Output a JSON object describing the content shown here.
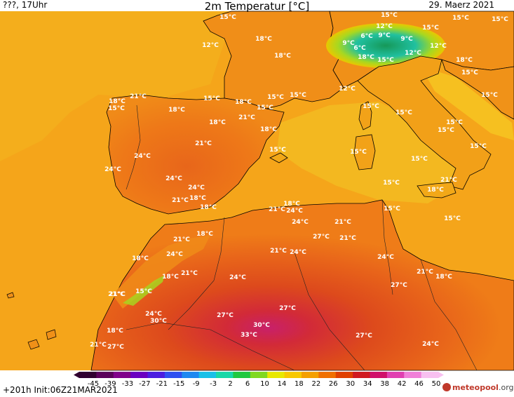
{
  "header": {
    "left": "???, 17Uhr",
    "title": "2m Temperatur [°C]",
    "date": "29. Maerz 2021"
  },
  "footer": {
    "run": "+201h Init:06Z21MAR2021",
    "logo_brand": "meteopool",
    "logo_domain": ".org"
  },
  "legend": {
    "ticks": [
      "-45",
      "-39",
      "-33",
      "-27",
      "-21",
      "-15",
      "-9",
      "-3",
      "2",
      "6",
      "10",
      "14",
      "18",
      "22",
      "26",
      "30",
      "34",
      "38",
      "42",
      "46",
      "50"
    ],
    "colors": [
      "#300030",
      "#5a005a",
      "#80008a",
      "#6a00c0",
      "#4b1ee0",
      "#2f50f0",
      "#1e88f0",
      "#18c0e8",
      "#18d8a8",
      "#20c840",
      "#80d820",
      "#e8e800",
      "#f8c800",
      "#f4a000",
      "#f07000",
      "#e04000",
      "#d01a20",
      "#d0106a",
      "#e040b0",
      "#f080d8",
      "#f8c0f0"
    ]
  },
  "colors": {
    "sea": "#f4a318",
    "sea_light": "#f6b020",
    "land_warm": "#f08418",
    "land_hot": "#e65a14",
    "land_hotter": "#d9411e",
    "land_hottest": "#c81e3c",
    "alps": "#20c8a0",
    "alps_high": "#18a060",
    "coast": "#000000"
  },
  "labels": [
    {
      "t": "15°C"
    },
    {
      "t": "12°C"
    },
    {
      "t": "18°C"
    },
    {
      "t": "18°C"
    },
    {
      "t": "15°C"
    },
    {
      "t": "12°C"
    },
    {
      "t": "6°C"
    },
    {
      "t": "9°C"
    },
    {
      "t": "6°C"
    },
    {
      "t": "9°C"
    },
    {
      "t": "9°C"
    },
    {
      "t": "15°C"
    },
    {
      "t": "15°C"
    },
    {
      "t": "18°C"
    },
    {
      "t": "12°C"
    },
    {
      "t": "15°C"
    },
    {
      "t": "12°C"
    },
    {
      "t": "15°C"
    },
    {
      "t": "18°C"
    },
    {
      "t": "12°C"
    },
    {
      "t": "15°C"
    },
    {
      "t": "15°C"
    },
    {
      "t": "18°C"
    },
    {
      "t": "15°C"
    },
    {
      "t": "15°C"
    },
    {
      "t": "21°C"
    },
    {
      "t": "18°C"
    },
    {
      "t": "15°C"
    },
    {
      "t": "18°C"
    },
    {
      "t": "21°C"
    },
    {
      "t": "18°C"
    },
    {
      "t": "15°C"
    },
    {
      "t": "15°C"
    },
    {
      "t": "15°C"
    },
    {
      "t": "15°C"
    },
    {
      "t": "18°C"
    },
    {
      "t": "24°C"
    },
    {
      "t": "21°C"
    },
    {
      "t": "15°C"
    },
    {
      "t": "15°C"
    },
    {
      "t": "15°C"
    },
    {
      "t": "24°C"
    },
    {
      "t": "15°C"
    },
    {
      "t": "24°C"
    },
    {
      "t": "24°C"
    },
    {
      "t": "15°C"
    },
    {
      "t": "15°C"
    },
    {
      "t": "15°C"
    },
    {
      "t": "21°C"
    },
    {
      "t": "18°C"
    },
    {
      "t": "18°C"
    },
    {
      "t": "21°C"
    },
    {
      "t": "18°C"
    },
    {
      "t": "21°C"
    },
    {
      "t": "24°C"
    },
    {
      "t": "15°C"
    },
    {
      "t": "18°C"
    },
    {
      "t": "15°C"
    },
    {
      "t": "24°C"
    },
    {
      "t": "21°C"
    },
    {
      "t": "18°C"
    },
    {
      "t": "27°C"
    },
    {
      "t": "21°C"
    },
    {
      "t": "21°C"
    },
    {
      "t": "18°C"
    },
    {
      "t": "24°C"
    },
    {
      "t": "21°C"
    },
    {
      "t": "24°C"
    },
    {
      "t": "24°C"
    },
    {
      "t": "18°C"
    },
    {
      "t": "21°C"
    },
    {
      "t": "21°C"
    },
    {
      "t": "24°C"
    },
    {
      "t": "21°C"
    },
    {
      "t": "18°C"
    },
    {
      "t": "27°C"
    },
    {
      "t": "15°C"
    },
    {
      "t": "21°C"
    },
    {
      "t": "24°C"
    },
    {
      "t": "30°C"
    },
    {
      "t": "27°C"
    },
    {
      "t": "27°C"
    },
    {
      "t": "18°C"
    },
    {
      "t": "30°C"
    },
    {
      "t": "33°C"
    },
    {
      "t": "27°C"
    },
    {
      "t": "21°C"
    },
    {
      "t": "27°C"
    },
    {
      "t": "24°C"
    }
  ]
}
